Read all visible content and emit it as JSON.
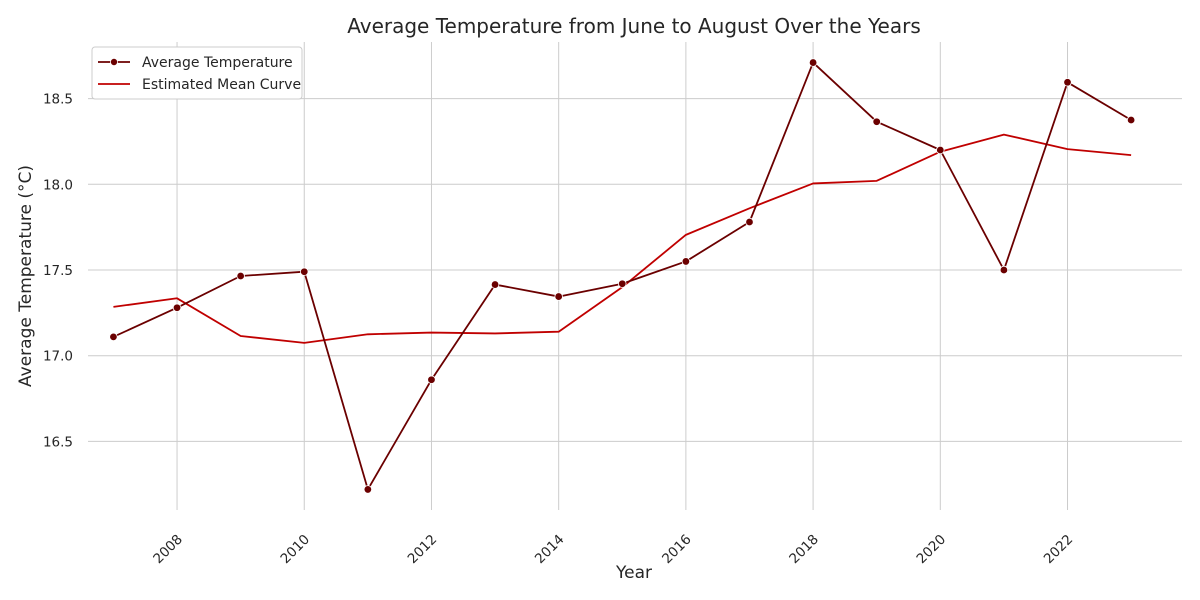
{
  "chart_data": {
    "type": "line",
    "title": "Average Temperature from June to August Over the Years",
    "xlabel": "Year",
    "ylabel": "Average Temperature (°C)",
    "x": [
      2007,
      2008,
      2009,
      2010,
      2011,
      2012,
      2013,
      2014,
      2015,
      2016,
      2017,
      2018,
      2019,
      2020,
      2021,
      2022,
      2023
    ],
    "xticks": [
      2008,
      2010,
      2012,
      2014,
      2016,
      2018,
      2020,
      2022
    ],
    "xtick_labels": [
      "2008",
      "2010",
      "2012",
      "2014",
      "2016",
      "2018",
      "2020",
      "2022"
    ],
    "yticks": [
      16.5,
      17.0,
      17.5,
      18.0,
      18.5
    ],
    "ytick_labels": [
      "16.5",
      "17.0",
      "17.5",
      "18.0",
      "18.5"
    ],
    "xlim": [
      2006.6,
      2023.8
    ],
    "ylim": [
      16.1,
      18.83
    ],
    "grid": true,
    "legend_position": "top-left",
    "series": [
      {
        "name": "Average Temperature",
        "color": "#6b0000",
        "marker": "circle",
        "values": [
          17.11,
          17.28,
          17.465,
          17.49,
          16.22,
          16.86,
          17.415,
          17.345,
          17.42,
          17.55,
          17.78,
          18.71,
          18.365,
          18.2,
          17.5,
          18.595,
          18.375
        ]
      },
      {
        "name": "Estimated Mean Curve",
        "color": "#c00000",
        "marker": "none",
        "values": [
          17.285,
          17.335,
          17.115,
          17.075,
          17.125,
          17.135,
          17.13,
          17.14,
          17.4,
          17.705,
          17.86,
          18.005,
          18.02,
          18.19,
          18.29,
          18.205,
          18.17
        ]
      }
    ]
  }
}
